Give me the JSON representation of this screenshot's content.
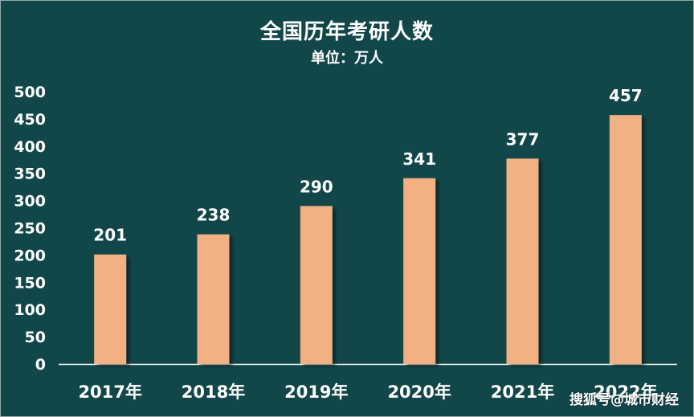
{
  "title": "全国历年考研人数",
  "subtitle": "单位：万人",
  "watermark": "搜狐号@城市财经",
  "colors": {
    "background": "#12474a",
    "bar": "#f2b183",
    "text": "#ffffff",
    "axis_line": "#ffffff"
  },
  "chart_data": {
    "type": "bar",
    "categories": [
      "2017年",
      "2018年",
      "2019年",
      "2020年",
      "2021年",
      "2022年"
    ],
    "values": [
      201,
      238,
      290,
      341,
      377,
      457
    ],
    "y_ticks": [
      0,
      50,
      100,
      150,
      200,
      250,
      300,
      350,
      400,
      450,
      500
    ],
    "ylim": [
      0,
      500
    ],
    "title": "全国历年考研人数",
    "subtitle": "单位：万人",
    "data_labels": true,
    "grid": false,
    "legend": "none"
  }
}
